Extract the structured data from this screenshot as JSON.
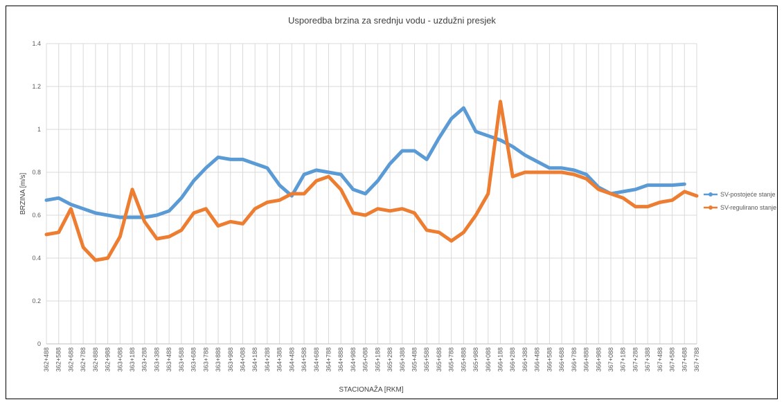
{
  "chart_data": {
    "type": "line",
    "title": "Usporedba brzina za srednju vodu - uzdužni presjek",
    "x_label": "STACIONAŽA [RKM]",
    "y_label": "BRZINA [m/s]",
    "categories": [
      "362+488",
      "362+588",
      "362+688",
      "362+788",
      "362+888",
      "362+988",
      "363+088",
      "363+188",
      "363+288",
      "363+388",
      "363+488",
      "363+588",
      "363+688",
      "363+788",
      "363+888",
      "363+988",
      "364+088",
      "364+188",
      "364+288",
      "364+388",
      "364+488",
      "364+588",
      "364+688",
      "364+788",
      "364+888",
      "364+988",
      "365+088",
      "365+188",
      "365+288",
      "365+388",
      "365+488",
      "365+588",
      "365+688",
      "365+788",
      "365+888",
      "365+988",
      "366+088",
      "366+188",
      "366+288",
      "366+388",
      "366+488",
      "366+588",
      "366+688",
      "366+788",
      "366+888",
      "366+988",
      "367+088",
      "367+188",
      "367+288",
      "367+388",
      "367+488",
      "367+588",
      "367+688",
      "367+788"
    ],
    "series": [
      {
        "name": "SV-postojeće stanje",
        "color": "#5b9bd5",
        "values": [
          0.67,
          0.68,
          0.65,
          0.63,
          0.61,
          0.6,
          0.59,
          0.59,
          0.59,
          0.6,
          0.62,
          0.68,
          0.76,
          0.82,
          0.87,
          0.86,
          0.86,
          0.84,
          0.82,
          0.74,
          0.69,
          0.79,
          0.81,
          0.8,
          0.79,
          0.72,
          0.7,
          0.76,
          0.84,
          0.9,
          0.9,
          0.86,
          0.96,
          1.05,
          1.1,
          0.99,
          0.97,
          0.95,
          0.92,
          0.88,
          0.85,
          0.82,
          0.82,
          0.81,
          0.79,
          0.73,
          0.7,
          0.71,
          0.72,
          0.74,
          0.74,
          0.74,
          0.745,
          null
        ]
      },
      {
        "name": "SV-regulirano stanje",
        "color": "#ed7d31",
        "values": [
          0.51,
          0.52,
          0.63,
          0.45,
          0.39,
          0.4,
          0.5,
          0.72,
          0.57,
          0.49,
          0.5,
          0.53,
          0.61,
          0.63,
          0.55,
          0.57,
          0.56,
          0.63,
          0.66,
          0.67,
          0.7,
          0.7,
          0.76,
          0.78,
          0.72,
          0.61,
          0.6,
          0.63,
          0.62,
          0.63,
          0.61,
          0.53,
          0.52,
          0.48,
          0.52,
          0.6,
          0.7,
          1.13,
          0.78,
          0.8,
          0.8,
          0.8,
          0.8,
          0.79,
          0.77,
          0.72,
          0.7,
          0.68,
          0.64,
          0.64,
          0.66,
          0.67,
          0.71,
          0.69
        ]
      }
    ],
    "ylim": [
      0,
      1.4
    ],
    "yticks": [
      0,
      0.2,
      0.4,
      0.6,
      0.8,
      1,
      1.2,
      1.4
    ],
    "grid": true,
    "legend": "right"
  }
}
